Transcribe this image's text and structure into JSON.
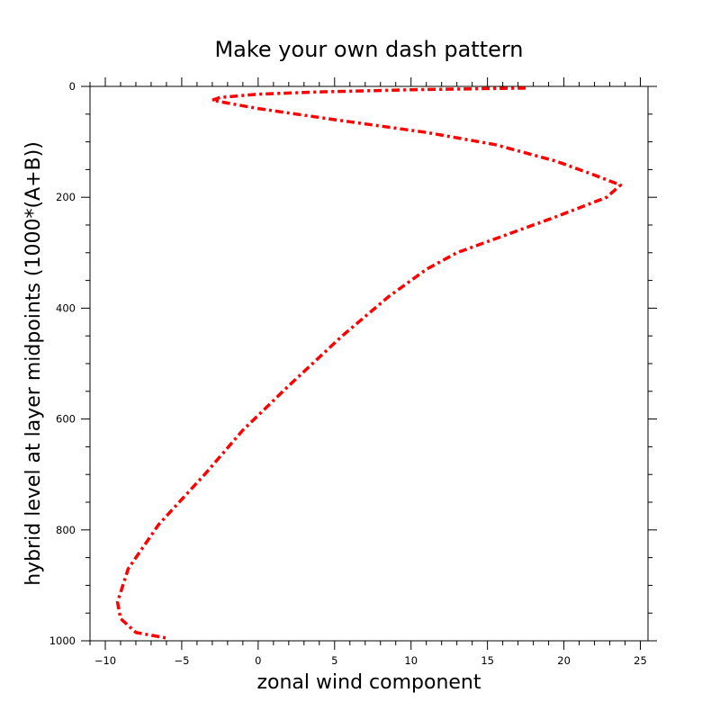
{
  "chart_data": {
    "type": "line",
    "title": "Make your own dash pattern",
    "xlabel": "zonal wind component",
    "ylabel": "hybrid level at layer midpoints (1000*(A+B))",
    "xlim": [
      -11,
      25.5
    ],
    "ylim": [
      1000,
      0
    ],
    "y_inverted": true,
    "xticks": [
      -10,
      -5,
      0,
      5,
      10,
      15,
      20,
      25
    ],
    "xtick_labels": [
      "−10",
      "−5",
      "0",
      "5",
      "10",
      "15",
      "20",
      "25"
    ],
    "yticks": [
      0,
      200,
      400,
      600,
      800,
      1000
    ],
    "ytick_labels": [
      "0",
      "200",
      "400",
      "600",
      "800",
      "1000"
    ],
    "grid": false,
    "legend": "none",
    "series": [
      {
        "color": "#ff0000",
        "line_style": "custom-dash",
        "x": [
          17.5,
          10.0,
          4.0,
          0.0,
          -2.5,
          -3.0,
          -2.0,
          0.0,
          5.0,
          11.0,
          15.5,
          19.5,
          22.0,
          23.7,
          22.8,
          19.5,
          16.0,
          13.0,
          11.0,
          8.5,
          5.5,
          2.0,
          -1.0,
          -3.5,
          -6.5,
          -8.5,
          -9.2,
          -9.0,
          -8.0,
          -6.0
        ],
        "y": [
          3,
          6,
          10,
          14,
          20,
          25,
          30,
          40,
          60,
          83,
          105,
          135,
          160,
          178,
          200,
          235,
          270,
          300,
          330,
          380,
          450,
          540,
          620,
          700,
          790,
          870,
          930,
          960,
          985,
          995
        ]
      }
    ]
  }
}
